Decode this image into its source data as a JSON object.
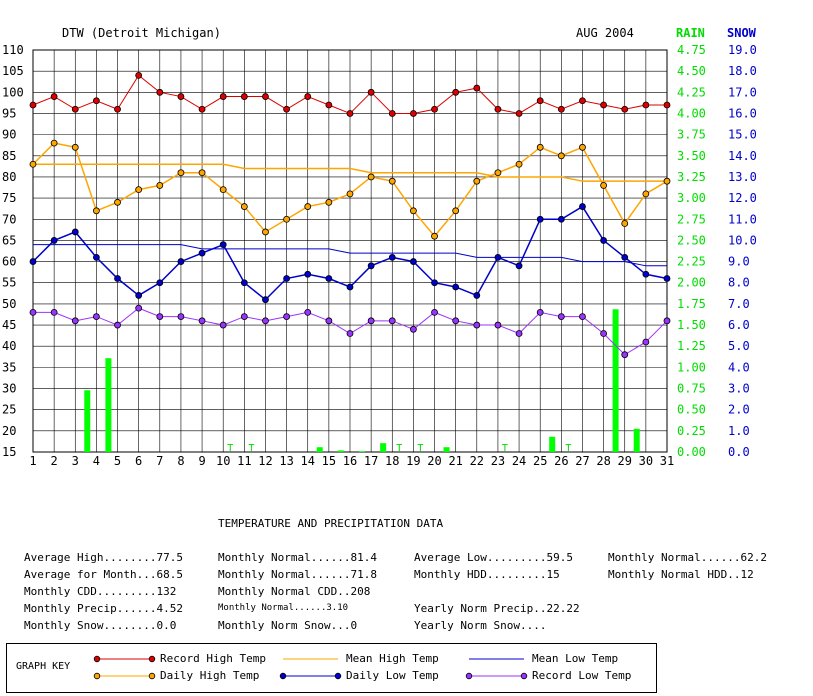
{
  "header": {
    "station": "DTW (Detroit Michigan)",
    "period": "AUG 2004",
    "rain_label": "RAIN",
    "snow_label": "SNOW"
  },
  "chart_data": {
    "type": "line",
    "x": [
      1,
      2,
      3,
      4,
      5,
      6,
      7,
      8,
      9,
      10,
      11,
      12,
      13,
      14,
      15,
      16,
      17,
      18,
      19,
      20,
      21,
      22,
      23,
      24,
      25,
      26,
      27,
      28,
      29,
      30,
      31
    ],
    "xlim": [
      1,
      31
    ],
    "ylim": [
      15,
      110
    ],
    "temp_ticks": [
      15,
      20,
      25,
      30,
      35,
      40,
      45,
      50,
      55,
      60,
      65,
      70,
      75,
      80,
      85,
      90,
      95,
      100,
      105,
      110
    ],
    "rain_ticks": [
      "0.00",
      "0.25",
      "0.50",
      "0.75",
      "1.00",
      "1.25",
      "1.50",
      "1.75",
      "2.00",
      "2.25",
      "2.50",
      "2.75",
      "3.00",
      "3.25",
      "3.50",
      "3.75",
      "4.00",
      "4.25",
      "4.50",
      "4.75"
    ],
    "snow_ticks": [
      "0.0",
      "1.0",
      "2.0",
      "3.0",
      "4.0",
      "5.0",
      "6.0",
      "7.0",
      "8.0",
      "9.0",
      "10.0",
      "11.0",
      "12.0",
      "13.0",
      "14.0",
      "15.0",
      "16.0",
      "17.0",
      "18.0",
      "19.0"
    ],
    "rain_max": 4.75,
    "grid": true,
    "series": [
      {
        "name": "Record High Temp",
        "key": "record_high",
        "color": "#dd0000",
        "marker": "#dd0000",
        "line_width": 1,
        "values": [
          97,
          99,
          96,
          98,
          96,
          104,
          100,
          99,
          96,
          99,
          99,
          99,
          96,
          99,
          97,
          95,
          100,
          95,
          95,
          96,
          100,
          101,
          96,
          95,
          98,
          96,
          98,
          97,
          96,
          97,
          97
        ]
      },
      {
        "name": "Mean High Temp",
        "key": "mean_high",
        "color": "#ffa500",
        "marker": null,
        "line_width": 1.5,
        "values": [
          83,
          83,
          83,
          83,
          83,
          83,
          83,
          83,
          83,
          83,
          82,
          82,
          82,
          82,
          82,
          82,
          81,
          81,
          81,
          81,
          81,
          81,
          80,
          80,
          80,
          80,
          79,
          79,
          79,
          79,
          79
        ]
      },
      {
        "name": "Mean Low Temp",
        "key": "mean_low",
        "color": "#0000cc",
        "marker": null,
        "line_width": 1,
        "values": [
          64,
          64,
          64,
          64,
          64,
          64,
          64,
          64,
          63,
          63,
          63,
          63,
          63,
          63,
          63,
          62,
          62,
          62,
          62,
          62,
          62,
          61,
          61,
          61,
          61,
          61,
          60,
          60,
          60,
          59,
          59
        ]
      },
      {
        "name": "Daily High Temp",
        "key": "daily_high",
        "color": "#ffa500",
        "marker": "#ffa500",
        "line_width": 1.5,
        "values": [
          83,
          88,
          87,
          72,
          74,
          77,
          78,
          81,
          81,
          77,
          73,
          67,
          70,
          73,
          74,
          76,
          80,
          79,
          72,
          66,
          72,
          79,
          81,
          83,
          87,
          85,
          87,
          78,
          69,
          76,
          79
        ]
      },
      {
        "name": "Daily Low Temp",
        "key": "daily_low",
        "color": "#0000cc",
        "marker": "#0000cc",
        "line_width": 1.5,
        "values": [
          60,
          65,
          67,
          61,
          56,
          52,
          55,
          60,
          62,
          64,
          55,
          51,
          56,
          57,
          56,
          54,
          59,
          61,
          60,
          55,
          54,
          52,
          61,
          59,
          70,
          70,
          73,
          65,
          61,
          57,
          56
        ]
      },
      {
        "name": "Record Low Temp",
        "key": "record_low",
        "color": "#9933ff",
        "marker": "#9933ff",
        "line_width": 1,
        "values": [
          48,
          48,
          46,
          47,
          45,
          49,
          47,
          47,
          46,
          45,
          47,
          46,
          47,
          48,
          46,
          43,
          46,
          46,
          44,
          48,
          46,
          45,
          45,
          43,
          48,
          47,
          47,
          43,
          38,
          41,
          46
        ]
      }
    ],
    "precip": {
      "name": "Daily Precip",
      "color": "#00ff00",
      "values": [
        0,
        0,
        0.77,
        1.17,
        0,
        0,
        0,
        0,
        0,
        0,
        0,
        0,
        0,
        0.06,
        0.02,
        0.01,
        0.11,
        0,
        0,
        0.06,
        0,
        0,
        0,
        0,
        0.19,
        0,
        0,
        1.78,
        0.29,
        0,
        0
      ],
      "trace_days": [
        10,
        11,
        18,
        19,
        23,
        26
      ]
    }
  },
  "summary": {
    "title": "TEMPERATURE AND PRECIPITATION DATA",
    "rows": [
      [
        "Average High........77.5",
        "Monthly Normal......81.4",
        "Average Low.........59.5",
        "Monthly Normal......62.2"
      ],
      [
        "Average for Month...68.5",
        "Monthly Normal......71.8",
        "Monthly HDD.........15",
        "Monthly Normal HDD..12"
      ],
      [
        "Monthly CDD.........132",
        "Monthly Normal CDD..208",
        "",
        ""
      ],
      [
        "Monthly Precip......4.52",
        "Monthly Normal......3.10",
        "Yearly Norm Precip..22.22",
        ""
      ],
      [
        "Monthly Snow........0.0",
        "Monthly Norm Snow...0",
        "Yearly Norm Snow....",
        ""
      ]
    ]
  },
  "graph_key": {
    "title": "GRAPH KEY",
    "trace_label": "T",
    "items": [
      {
        "label": "Record High Temp",
        "color": "#dd0000",
        "marker": true
      },
      {
        "label": "Mean High Temp",
        "color": "#ffa500",
        "marker": false
      },
      {
        "label": "Mean Low Temp",
        "color": "#0000cc",
        "marker": false
      },
      {
        "label": "Daily High Temp",
        "color": "#ffa500",
        "marker": true
      },
      {
        "label": "Daily Low Temp",
        "color": "#0000cc",
        "marker": true
      },
      {
        "label": "Record Low Temp",
        "color": "#9933ff",
        "marker": true
      }
    ]
  }
}
